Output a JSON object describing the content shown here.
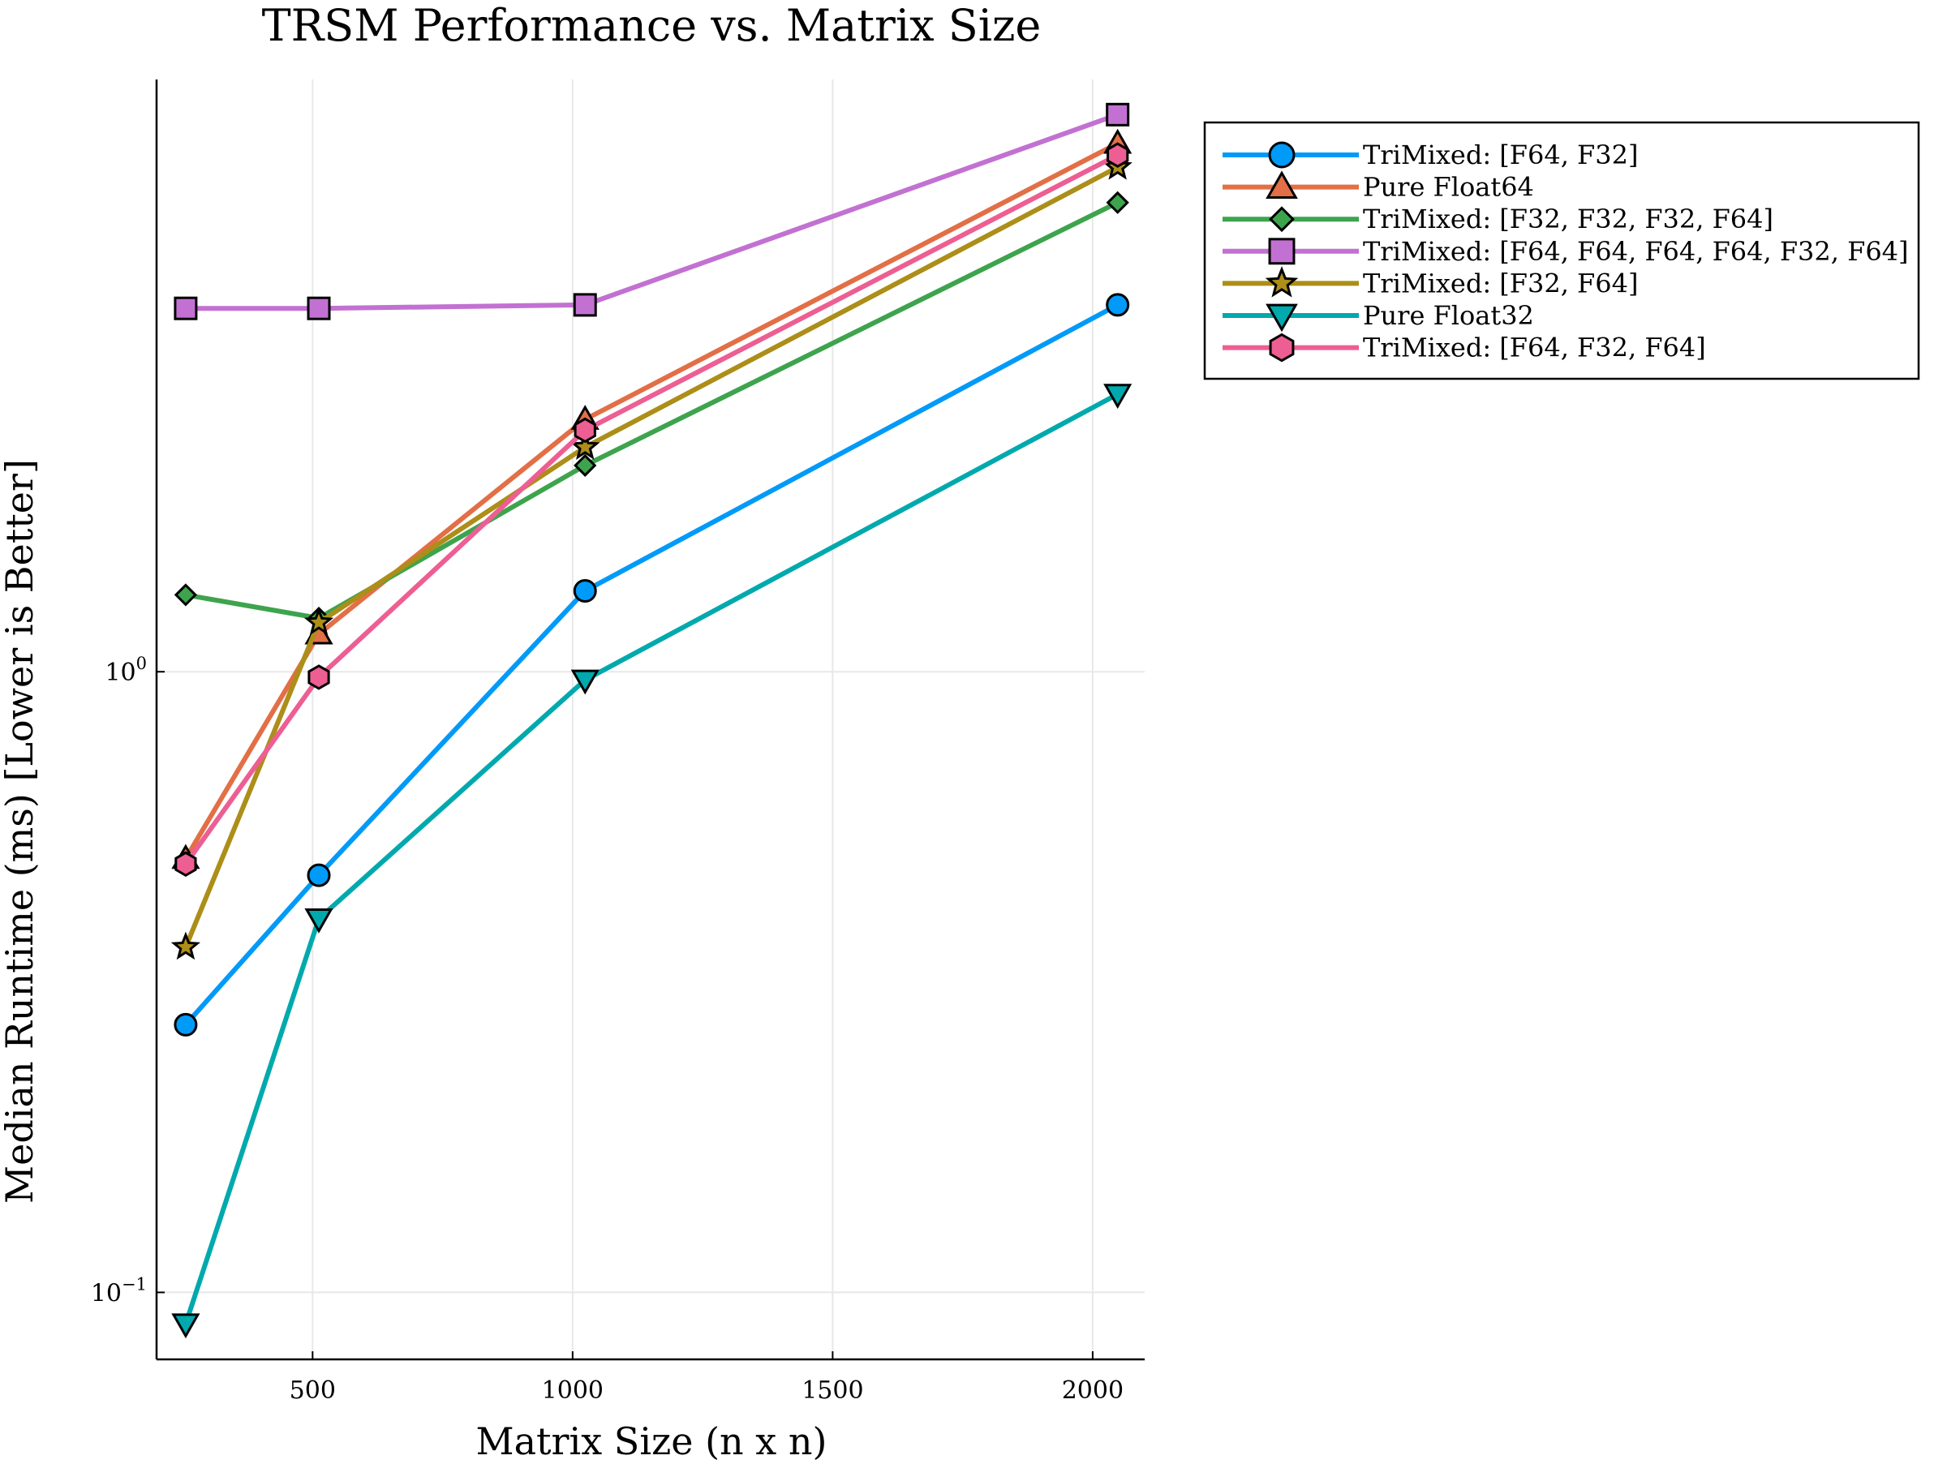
{
  "chart_data": {
    "type": "line",
    "title": "TRSM Performance vs. Matrix Size",
    "xlabel": "Matrix Size (n x n)",
    "ylabel": "Median Runtime (ms) [Lower is Better]",
    "x": [
      256,
      512,
      1024,
      2048
    ],
    "xlim": [
      200,
      2100
    ],
    "ylim": [
      0.078,
      9.0
    ],
    "yscale": "log",
    "grid": true,
    "legend_position": "outer top-right",
    "xticks": [
      {
        "value": 500,
        "label": "500"
      },
      {
        "value": 1000,
        "label": "1000"
      },
      {
        "value": 1500,
        "label": "1500"
      },
      {
        "value": 2000,
        "label": "2000"
      }
    ],
    "yticks": [
      {
        "value": 0.1,
        "base": "10",
        "exp": "−1"
      },
      {
        "value": 1,
        "base": "10",
        "exp": "0"
      }
    ],
    "series": [
      {
        "name": "TriMixed: [F64, F32]",
        "color": "#009AF9",
        "marker": "circle",
        "values": [
          0.27,
          0.47,
          1.35,
          3.9
        ]
      },
      {
        "name": "Pure Float64",
        "color": "#E26F46",
        "marker": "triangle-up",
        "values": [
          0.5,
          1.15,
          2.55,
          7.1
        ]
      },
      {
        "name": "TriMixed: [F32, F32, F32, F64]",
        "color": "#3DA44D",
        "marker": "diamond",
        "values": [
          1.33,
          1.22,
          2.15,
          5.7
        ]
      },
      {
        "name": "TriMixed: [F64, F64, F64, F64, F32, F64]",
        "color": "#C271D2",
        "marker": "square",
        "values": [
          3.85,
          3.85,
          3.9,
          7.9
        ]
      },
      {
        "name": "TriMixed: [F32, F64]",
        "color": "#AC8E18",
        "marker": "star",
        "values": [
          0.36,
          1.2,
          2.3,
          6.5
        ]
      },
      {
        "name": "Pure Float32",
        "color": "#00A9AD",
        "marker": "triangle-down",
        "values": [
          0.089,
          0.4,
          0.97,
          2.8
        ]
      },
      {
        "name": "TriMixed: [F64, F32, F64]",
        "color": "#ED5E93",
        "marker": "hexagon",
        "values": [
          0.49,
          0.98,
          2.45,
          6.8
        ]
      }
    ]
  }
}
